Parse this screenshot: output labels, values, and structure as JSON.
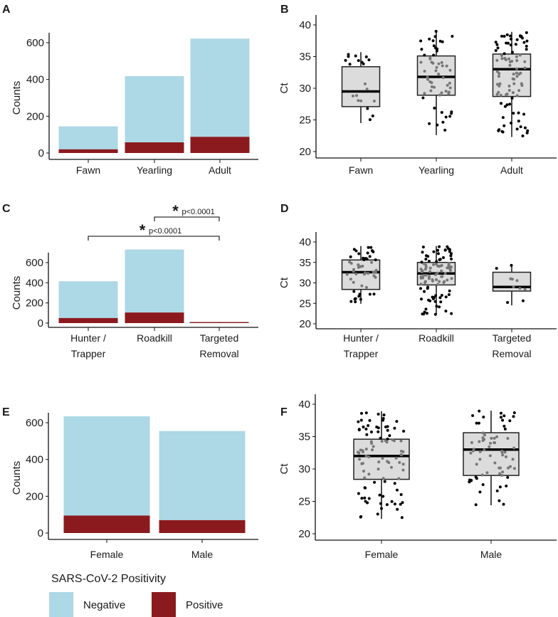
{
  "colors": {
    "negative": "#add8e6",
    "positive": "#8b1a1e",
    "box_fill": "#dcdcdc",
    "inner_point": "#777777",
    "outer_point": "#000000"
  },
  "legend": {
    "title": "SARS-CoV-2 Positivity",
    "items": [
      "Negative",
      "Positive"
    ]
  },
  "chart_data": [
    {
      "panel": "A",
      "type": "bar",
      "stacked": true,
      "ylabel": "Counts",
      "yticks": [
        0,
        200,
        400,
        600
      ],
      "categories": [
        "Fawn",
        "Yearling",
        "Adult"
      ],
      "series": [
        {
          "name": "Positive",
          "values": [
            20,
            58,
            88
          ]
        },
        {
          "name": "Negative",
          "values": [
            125,
            360,
            534
          ]
        }
      ]
    },
    {
      "panel": "B",
      "type": "box",
      "ylabel": "Ct",
      "yticks": [
        20,
        25,
        30,
        35,
        40
      ],
      "ylim": [
        20,
        40
      ],
      "categories": [
        "Fawn",
        "Yearling",
        "Adult"
      ],
      "boxes": [
        {
          "min": 24.5,
          "q1": 27.1,
          "median": 29.5,
          "q3": 33.4,
          "max": 35.7,
          "n_points": 20
        },
        {
          "min": 22.6,
          "q1": 28.9,
          "median": 31.8,
          "q3": 35.1,
          "max": 39.0,
          "n_points": 58
        },
        {
          "min": 22.3,
          "q1": 28.7,
          "median": 33.0,
          "q3": 35.4,
          "max": 38.9,
          "n_points": 88
        }
      ]
    },
    {
      "panel": "C",
      "type": "bar",
      "stacked": true,
      "ylabel": "Counts",
      "yticks": [
        0,
        200,
        400,
        600
      ],
      "categories": [
        "Hunter /\nTrapper",
        "Roadkill",
        "Targeted\nRemoval"
      ],
      "series": [
        {
          "name": "Positive",
          "values": [
            50,
            105,
            10
          ]
        },
        {
          "name": "Negative",
          "values": [
            365,
            625,
            2
          ]
        }
      ],
      "annotations": [
        {
          "from": 1,
          "to": 2,
          "label": "p<0.0001",
          "star": "*"
        },
        {
          "from": 0,
          "to": 2,
          "label": "p<0.0001",
          "star": "*"
        }
      ]
    },
    {
      "panel": "D",
      "type": "box",
      "ylabel": "Ct",
      "yticks": [
        20,
        25,
        30,
        35,
        40
      ],
      "ylim": [
        20,
        40
      ],
      "categories": [
        "Hunter /\nTrapper",
        "Roadkill",
        "Targeted\nRemoval"
      ],
      "boxes": [
        {
          "min": 24.9,
          "q1": 28.4,
          "median": 32.6,
          "q3": 35.6,
          "max": 39.0,
          "n_points": 50
        },
        {
          "min": 22.3,
          "q1": 29.5,
          "median": 32.3,
          "q3": 35.0,
          "max": 39.0,
          "n_points": 105
        },
        {
          "min": 24.5,
          "q1": 28.0,
          "median": 29.0,
          "q3": 32.6,
          "max": 34.6,
          "n_points": 10
        }
      ]
    },
    {
      "panel": "E",
      "type": "bar",
      "stacked": true,
      "ylabel": "Counts",
      "yticks": [
        0,
        200,
        400,
        600
      ],
      "categories": [
        "Female",
        "Male"
      ],
      "series": [
        {
          "name": "Positive",
          "values": [
            95,
            70
          ]
        },
        {
          "name": "Negative",
          "values": [
            540,
            485
          ]
        }
      ]
    },
    {
      "panel": "F",
      "type": "box",
      "ylabel": "Ct",
      "yticks": [
        20,
        25,
        30,
        35,
        40
      ],
      "ylim": [
        20,
        40
      ],
      "categories": [
        "Female",
        "Male"
      ],
      "boxes": [
        {
          "min": 22.3,
          "q1": 28.4,
          "median": 32.0,
          "q3": 34.6,
          "max": 38.9,
          "n_points": 95
        },
        {
          "min": 24.4,
          "q1": 29.0,
          "median": 33.0,
          "q3": 35.6,
          "max": 39.0,
          "n_points": 70
        }
      ]
    }
  ]
}
